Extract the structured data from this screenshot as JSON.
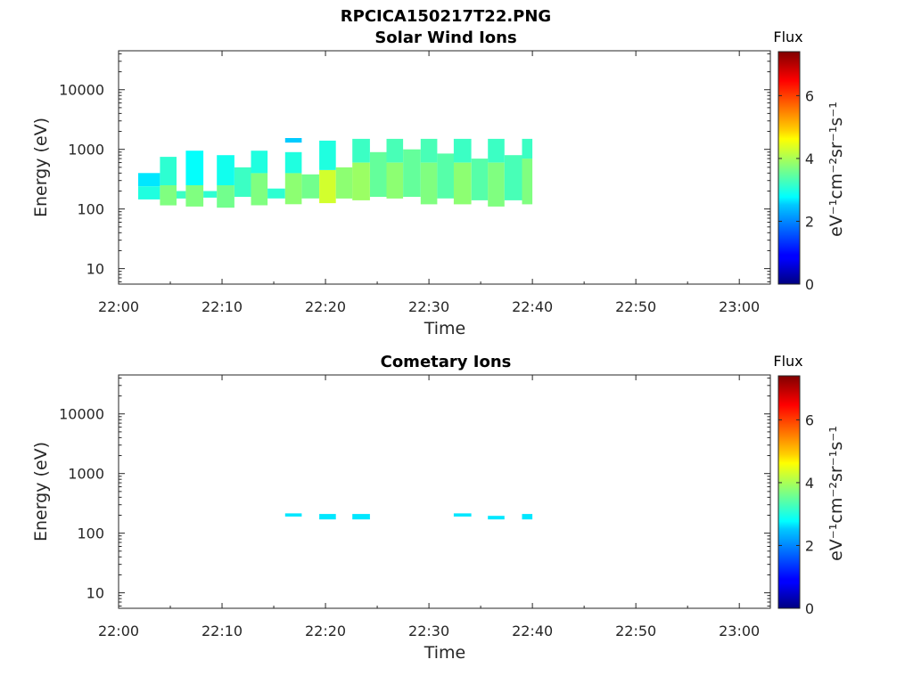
{
  "figure_title": "RPCICA150217T22.PNG",
  "colorbar": {
    "title": "Flux",
    "label": "eV⁻¹cm⁻²sr⁻¹s⁻¹",
    "range": [
      0,
      7.4
    ],
    "ticks": [
      "0",
      "2",
      "4",
      "6"
    ],
    "colormap": "jet"
  },
  "chart_data": [
    {
      "type": "heatmap",
      "title": "Solar Wind Ions",
      "xlabel": "Time",
      "ylabel": "Energy (eV)",
      "x_ticks": [
        "22:00",
        "22:10",
        "22:20",
        "22:30",
        "22:40",
        "22:50",
        "23:00"
      ],
      "x_range_min": [
        0,
        63
      ],
      "y_scale": "log",
      "y_ticks": [
        "10",
        "100",
        "1000",
        "10000"
      ],
      "y_range": [
        5.5,
        45000
      ],
      "cells": [
        {
          "t": [
            1.9,
            4.0
          ],
          "e": [
            240,
            400
          ],
          "v": 2.6
        },
        {
          "t": [
            1.9,
            4.0
          ],
          "e": [
            145,
            240
          ],
          "v": 3.0
        },
        {
          "t": [
            4.0,
            5.6
          ],
          "e": [
            115,
            250
          ],
          "v": 3.7
        },
        {
          "t": [
            4.0,
            5.6
          ],
          "e": [
            250,
            750
          ],
          "v": 3.1
        },
        {
          "t": [
            5.6,
            6.5
          ],
          "e": [
            150,
            200
          ],
          "v": 3.2
        },
        {
          "t": [
            6.5,
            8.2
          ],
          "e": [
            110,
            250
          ],
          "v": 3.7
        },
        {
          "t": [
            6.5,
            8.2
          ],
          "e": [
            250,
            950
          ],
          "v": 2.8
        },
        {
          "t": [
            8.2,
            9.5
          ],
          "e": [
            155,
            200
          ],
          "v": 3.1
        },
        {
          "t": [
            9.5,
            11.2
          ],
          "e": [
            105,
            250
          ],
          "v": 3.6
        },
        {
          "t": [
            9.5,
            11.2
          ],
          "e": [
            250,
            800
          ],
          "v": 2.9
        },
        {
          "t": [
            11.2,
            12.8
          ],
          "e": [
            160,
            500
          ],
          "v": 3.2
        },
        {
          "t": [
            12.8,
            14.4
          ],
          "e": [
            115,
            400
          ],
          "v": 3.7
        },
        {
          "t": [
            12.8,
            14.4
          ],
          "e": [
            400,
            950
          ],
          "v": 3.0
        },
        {
          "t": [
            14.4,
            16.1
          ],
          "e": [
            150,
            220
          ],
          "v": 3.1
        },
        {
          "t": [
            16.1,
            17.7
          ],
          "e": [
            120,
            400
          ],
          "v": 3.8
        },
        {
          "t": [
            16.1,
            17.7
          ],
          "e": [
            400,
            900
          ],
          "v": 3.0
        },
        {
          "t": [
            16.1,
            17.7
          ],
          "e": [
            1300,
            1550
          ],
          "v": 2.4
        },
        {
          "t": [
            17.7,
            19.4
          ],
          "e": [
            150,
            380
          ],
          "v": 3.6
        },
        {
          "t": [
            19.4,
            21.0
          ],
          "e": [
            125,
            450
          ],
          "v": 4.3
        },
        {
          "t": [
            19.4,
            21.0
          ],
          "e": [
            450,
            1400
          ],
          "v": 3.0
        },
        {
          "t": [
            21.0,
            22.6
          ],
          "e": [
            150,
            500
          ],
          "v": 3.8
        },
        {
          "t": [
            22.6,
            24.3
          ],
          "e": [
            140,
            600
          ],
          "v": 3.9
        },
        {
          "t": [
            22.6,
            24.3
          ],
          "e": [
            600,
            1500
          ],
          "v": 3.2
        },
        {
          "t": [
            24.3,
            25.9
          ],
          "e": [
            160,
            900
          ],
          "v": 3.5
        },
        {
          "t": [
            25.9,
            27.5
          ],
          "e": [
            150,
            600
          ],
          "v": 3.8
        },
        {
          "t": [
            25.9,
            27.5
          ],
          "e": [
            600,
            1500
          ],
          "v": 3.3
        },
        {
          "t": [
            27.5,
            29.2
          ],
          "e": [
            160,
            1000
          ],
          "v": 3.5
        },
        {
          "t": [
            29.2,
            30.8
          ],
          "e": [
            120,
            600
          ],
          "v": 3.7
        },
        {
          "t": [
            29.2,
            30.8
          ],
          "e": [
            600,
            1500
          ],
          "v": 3.3
        },
        {
          "t": [
            30.8,
            32.4
          ],
          "e": [
            150,
            850
          ],
          "v": 3.4
        },
        {
          "t": [
            32.4,
            34.1
          ],
          "e": [
            120,
            600
          ],
          "v": 3.8
        },
        {
          "t": [
            32.4,
            34.1
          ],
          "e": [
            600,
            1500
          ],
          "v": 3.2
        },
        {
          "t": [
            34.1,
            35.7
          ],
          "e": [
            140,
            700
          ],
          "v": 3.4
        },
        {
          "t": [
            35.7,
            37.3
          ],
          "e": [
            110,
            600
          ],
          "v": 3.7
        },
        {
          "t": [
            35.7,
            37.3
          ],
          "e": [
            600,
            1500
          ],
          "v": 3.2
        },
        {
          "t": [
            37.3,
            39.0
          ],
          "e": [
            140,
            800
          ],
          "v": 3.3
        },
        {
          "t": [
            39.0,
            40.0
          ],
          "e": [
            120,
            700
          ],
          "v": 3.7
        },
        {
          "t": [
            39.0,
            40.0
          ],
          "e": [
            700,
            1500
          ],
          "v": 3.2
        }
      ]
    },
    {
      "type": "heatmap",
      "title": "Cometary Ions",
      "xlabel": "Time",
      "ylabel": "Energy (eV)",
      "x_ticks": [
        "22:00",
        "22:10",
        "22:20",
        "22:30",
        "22:40",
        "22:50",
        "23:00"
      ],
      "x_range_min": [
        0,
        63
      ],
      "y_scale": "log",
      "y_ticks": [
        "10",
        "100",
        "1000",
        "10000"
      ],
      "y_range": [
        5.5,
        45000
      ],
      "cells": [
        {
          "t": [
            16.1,
            17.7
          ],
          "e": [
            190,
            215
          ],
          "v": 2.6
        },
        {
          "t": [
            19.4,
            21.0
          ],
          "e": [
            170,
            210
          ],
          "v": 2.6
        },
        {
          "t": [
            22.6,
            24.3
          ],
          "e": [
            170,
            210
          ],
          "v": 2.6
        },
        {
          "t": [
            32.4,
            34.1
          ],
          "e": [
            190,
            215
          ],
          "v": 2.6
        },
        {
          "t": [
            35.7,
            37.3
          ],
          "e": [
            170,
            195
          ],
          "v": 2.6
        },
        {
          "t": [
            39.0,
            40.0
          ],
          "e": [
            170,
            210
          ],
          "v": 2.6
        }
      ]
    }
  ]
}
